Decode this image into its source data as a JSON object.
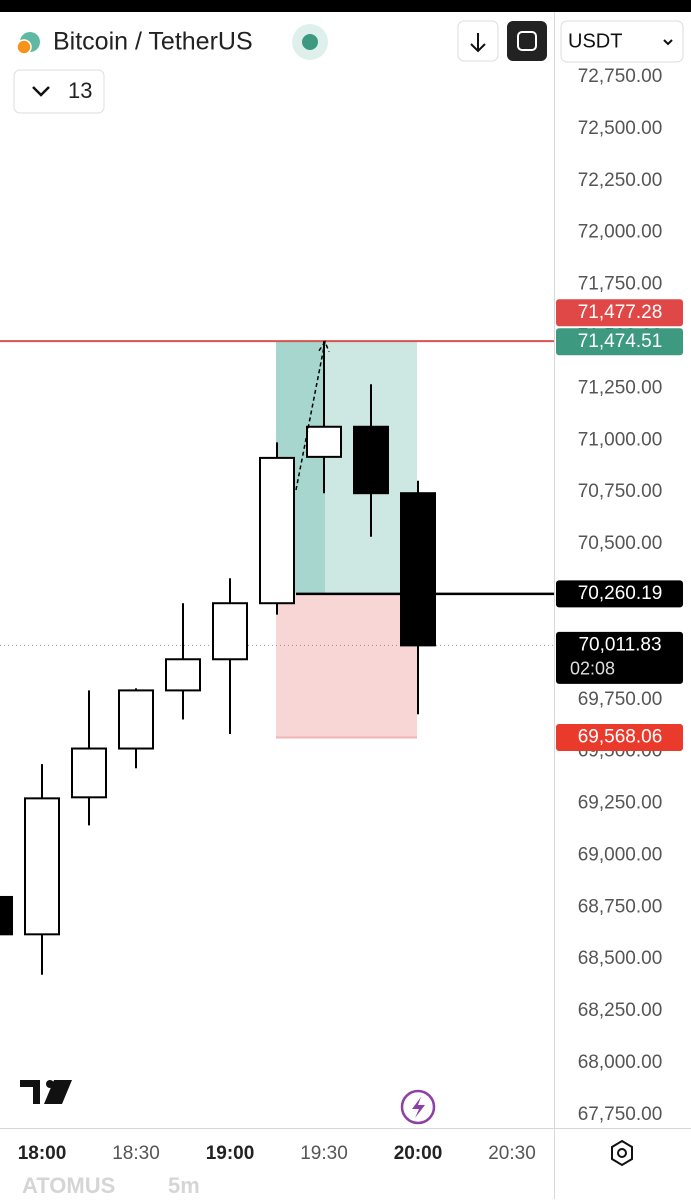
{
  "header": {
    "title": "Bitcoin / TetherUS",
    "interval_count": "13",
    "currency": "USDT"
  },
  "chart_data": {
    "type": "candlestick",
    "categories": [
      null,
      "18:00",
      null,
      "18:30",
      null,
      "19:00",
      null,
      "19:30",
      null,
      "20:00",
      null,
      "20:30"
    ],
    "open": [
      68800,
      68620,
      69280,
      69515,
      69795,
      69945,
      70215,
      70920,
      71065,
      70745,
      null,
      null
    ],
    "high": [
      68800,
      69440,
      69795,
      69805,
      70215,
      70335,
      70990,
      71477.28,
      71270,
      70805,
      null,
      null
    ],
    "low": [
      68620,
      68425,
      69145,
      69420,
      69655,
      69585,
      70160,
      70745,
      70535,
      69680,
      null,
      null
    ],
    "close": [
      68620,
      69275,
      69515,
      69795,
      69945,
      70215,
      70915,
      71065,
      70745,
      70011.83,
      null,
      null
    ],
    "up_color": "#ffffff",
    "down_color": "#000000",
    "ylim": [
      67687,
      73063
    ],
    "yticks": [
      {
        "value": 72750,
        "label": "72,750.00"
      },
      {
        "value": 72500,
        "label": "72,500.00"
      },
      {
        "value": 72250,
        "label": "72,250.00"
      },
      {
        "value": 72000,
        "label": "72,000.00"
      },
      {
        "value": 71750,
        "label": "71,750.00"
      },
      {
        "value": 71500,
        "label": "71,500.00"
      },
      {
        "value": 71250,
        "label": "71,250.00"
      },
      {
        "value": 71000,
        "label": "71,000.00"
      },
      {
        "value": 70750,
        "label": "70,750.00"
      },
      {
        "value": 70500,
        "label": "70,500.00"
      },
      {
        "value": 70250,
        "label": "70,250.00"
      },
      {
        "value": 70000,
        "label": "70,000.00"
      },
      {
        "value": 69750,
        "label": "69,750.00"
      },
      {
        "value": 69500,
        "label": "69,500.00"
      },
      {
        "value": 69250,
        "label": "69,250.00"
      },
      {
        "value": 69000,
        "label": "69,000.00"
      },
      {
        "value": 68750,
        "label": "68,750.00"
      },
      {
        "value": 68500,
        "label": "68,500.00"
      },
      {
        "value": 68250,
        "label": "68,250.00"
      },
      {
        "value": 68000,
        "label": "68,000.00"
      },
      {
        "value": 67750,
        "label": "67,750.00"
      }
    ],
    "position": {
      "target": 71474.51,
      "entry": 70260.19,
      "stop": 69568.06,
      "profit_color": "#cde8e3",
      "profit_dark_color": "#a6d6cd",
      "loss_color": "#f8d6d6"
    },
    "high_line": {
      "value": 71477.28,
      "color": "#d9534f"
    },
    "current_price": 70011.83,
    "price_tags": [
      {
        "value": 71477.28,
        "label": "71,477.28",
        "color": "#e04848"
      },
      {
        "value": 71474.51,
        "label": "71,474.51",
        "color": "#3d9a81"
      },
      {
        "value": 70260.19,
        "label": "70,260.19",
        "color": "#000000"
      },
      {
        "value": 70011.83,
        "label": "70,011.83",
        "color": "#000000",
        "countdown": "02:08"
      },
      {
        "value": 69568.06,
        "label": "69,568.06",
        "color": "#ea3a2c"
      }
    ]
  },
  "footer": {
    "watermark": "ATOMUS",
    "interval": "5m"
  }
}
